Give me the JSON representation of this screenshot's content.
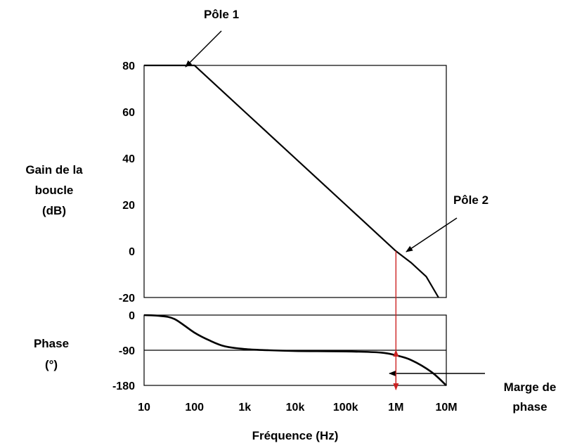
{
  "chart_data": [
    {
      "type": "line",
      "panel": "gain",
      "ylabel_lines": [
        "Gain de la",
        "boucle",
        "(dB)"
      ],
      "x_scale": "log",
      "xlim_hz": [
        10,
        10000000
      ],
      "ylim": [
        -20,
        80
      ],
      "yticks": [
        80,
        60,
        40,
        20,
        0,
        -20
      ],
      "series": [
        {
          "x_hz": [
            10,
            100,
            1000,
            10000,
            100000,
            1000000,
            2000000,
            4000000,
            7000000
          ],
          "y_db": [
            80,
            80,
            60,
            40,
            20,
            0,
            -5,
            -11,
            -20
          ]
        }
      ],
      "annotations": {
        "pole1": "Pôle 1",
        "pole2": "Pôle 2"
      }
    },
    {
      "type": "line",
      "panel": "phase",
      "ylabel_lines": [
        "Phase",
        "(°)"
      ],
      "x_scale": "log",
      "xlim_hz": [
        10,
        10000000
      ],
      "ylim": [
        -180,
        0
      ],
      "yticks": [
        0,
        -90,
        -180
      ],
      "reference_line_y": -90,
      "series": [
        {
          "x_hz": [
            10,
            20,
            40,
            100,
            200,
            400,
            1000,
            3000,
            10000,
            100000,
            500000,
            1000000,
            2000000,
            5000000,
            10000000
          ],
          "y_deg": [
            0,
            -2,
            -10,
            -45,
            -65,
            -80,
            -87,
            -90,
            -92,
            -93,
            -96,
            -103,
            -115,
            -145,
            -180
          ]
        }
      ],
      "annotations": {
        "phase_margin_lines": [
          "Marge de",
          "phase"
        ]
      }
    }
  ],
  "x_axis": {
    "tick_labels": [
      "10",
      "100",
      "1k",
      "10k",
      "100k",
      "1M",
      "10M"
    ],
    "tick_values_hz": [
      10,
      100,
      1000,
      10000,
      100000,
      1000000,
      10000000
    ],
    "xlabel": "Fréquence (Hz)"
  },
  "colors": {
    "curve": "#000000",
    "marker": "#cc2222"
  }
}
